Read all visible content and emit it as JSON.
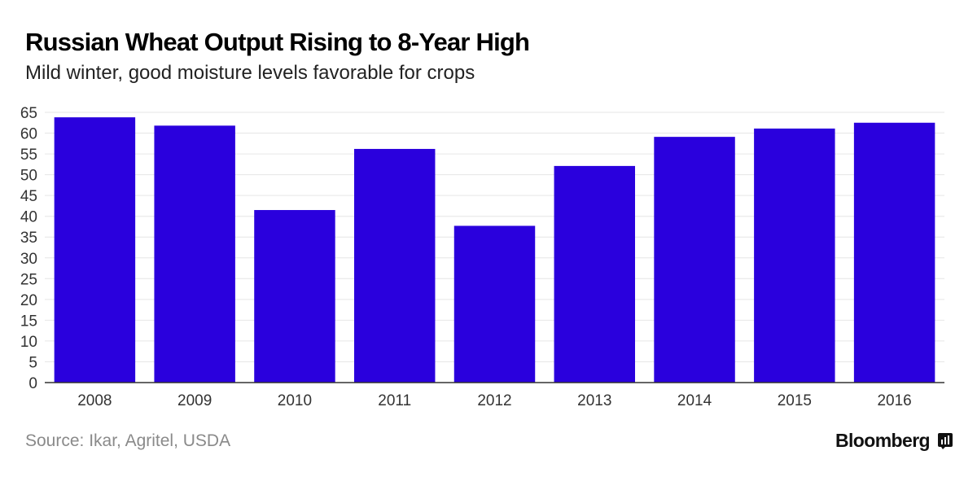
{
  "header": {
    "title": "Russian Wheat Output Rising to 8-Year High",
    "subtitle": "Mild winter, good moisture levels favorable for crops"
  },
  "footer": {
    "source": "Source: Ikar, Agritel, USDA",
    "brand": "Bloomberg",
    "brand_icon": "bloomberg-terminal-icon"
  },
  "colors": {
    "bar": "#2a00dd",
    "grid": "#e6e6e6",
    "axis": "#333333",
    "tick_text": "#333333"
  },
  "chart_data": {
    "type": "bar",
    "categories": [
      "2008",
      "2009",
      "2010",
      "2011",
      "2012",
      "2013",
      "2014",
      "2015",
      "2016"
    ],
    "values": [
      63.8,
      61.8,
      41.5,
      56.2,
      37.7,
      52.1,
      59.1,
      61.1,
      62.5
    ],
    "ylim": [
      0,
      65
    ],
    "yticks": [
      0,
      5,
      10,
      15,
      20,
      25,
      30,
      35,
      40,
      45,
      50,
      55,
      60,
      65
    ],
    "grid": true,
    "xlabel": "",
    "ylabel": ""
  }
}
